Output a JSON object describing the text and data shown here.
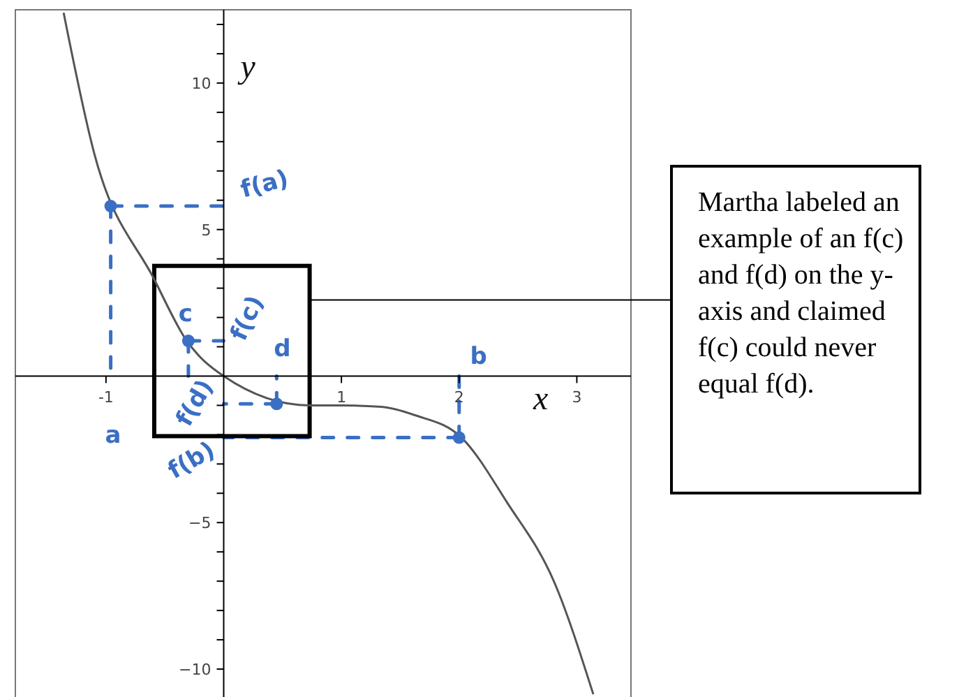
{
  "chart_data": {
    "type": "line",
    "xlabel": "x",
    "ylabel": "y",
    "xlim": [
      -1.77,
      3.46
    ],
    "ylim": [
      -11,
      12.5
    ],
    "xticks": [
      -1,
      1,
      2,
      3
    ],
    "yticks": [
      {
        "value": -10,
        "label": "−10"
      },
      {
        "value": -9,
        "label": null
      },
      {
        "value": -8,
        "label": null
      },
      {
        "value": -7,
        "label": null
      },
      {
        "value": -6,
        "label": null
      },
      {
        "value": -5,
        "label": "−5"
      },
      {
        "value": -4,
        "label": null
      },
      {
        "value": -3,
        "label": null
      },
      {
        "value": -2,
        "label": null
      },
      {
        "value": -1,
        "label": null
      },
      {
        "value": 1,
        "label": null
      },
      {
        "value": 2,
        "label": null
      },
      {
        "value": 3,
        "label": null
      },
      {
        "value": 4,
        "label": null
      },
      {
        "value": 5,
        "label": "5"
      },
      {
        "value": 6,
        "label": null
      },
      {
        "value": 7,
        "label": null
      },
      {
        "value": 8,
        "label": null
      },
      {
        "value": 9,
        "label": null
      },
      {
        "value": 10,
        "label": "10"
      },
      {
        "value": 11,
        "label": null
      },
      {
        "value": 12,
        "label": null
      }
    ],
    "series": [
      {
        "type": "line",
        "color": "#555555",
        "x": [
          -1.36,
          -1.1,
          -0.59,
          -0.32,
          0,
          0.73,
          1.0,
          1.34,
          1.62,
          2.02,
          2.41,
          2.81,
          3.14
        ],
        "values": [
          12.4,
          7.6,
          3.3,
          1.24,
          0,
          -1.0,
          -1.0,
          -1.05,
          -1.33,
          -2.1,
          -4.33,
          -7.05,
          -10.86
        ]
      },
      {
        "type": "scatter",
        "color": "#3a6fc4",
        "x": [
          -0.96,
          -0.3,
          0.45,
          2
        ],
        "values": [
          5.8,
          1.2,
          -0.95,
          -2.1
        ]
      }
    ],
    "annotations": [
      {
        "text": "f(a)",
        "x": -0.96,
        "y": 5.8
      },
      {
        "text": "c",
        "x": -0.3,
        "y": 1.2
      },
      {
        "text": "f(c)",
        "x": -0.3,
        "y": 1.2
      },
      {
        "text": "d",
        "x": 0.45,
        "y": -0.95
      },
      {
        "text": "f(d)",
        "x": 0.45,
        "y": -0.95
      },
      {
        "text": "b",
        "x": 2,
        "y": -2.1
      },
      "a",
      {
        "text": "f(b)",
        "x": 2,
        "y": -2.1
      },
      "Martha labeled an example of an f(c) and f(d) on the y-axis and claimed f(c) could never equal f(d)."
    ]
  }
}
